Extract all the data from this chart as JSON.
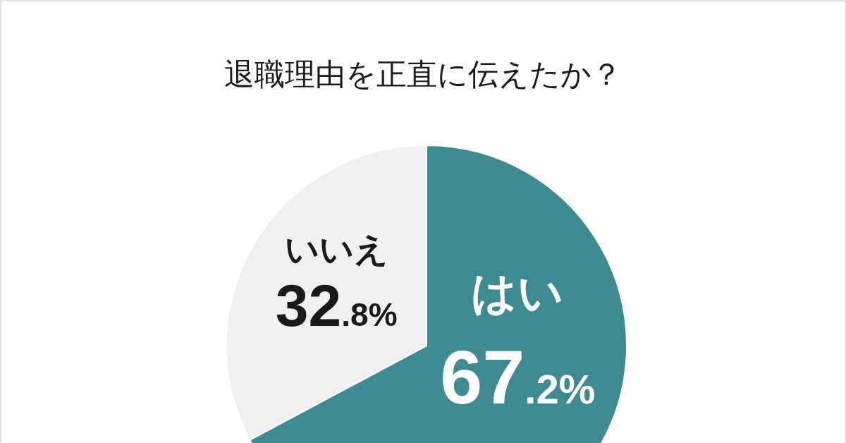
{
  "chart_data": {
    "type": "pie",
    "title": "退職理由を正直に伝えたか？",
    "categories": [
      "はい",
      "いいえ"
    ],
    "values": [
      67.2,
      32.8
    ],
    "colors": [
      "#3d8a91",
      "#f0f0f0"
    ],
    "value_labels": [
      "67.2%",
      "32.8%"
    ]
  }
}
